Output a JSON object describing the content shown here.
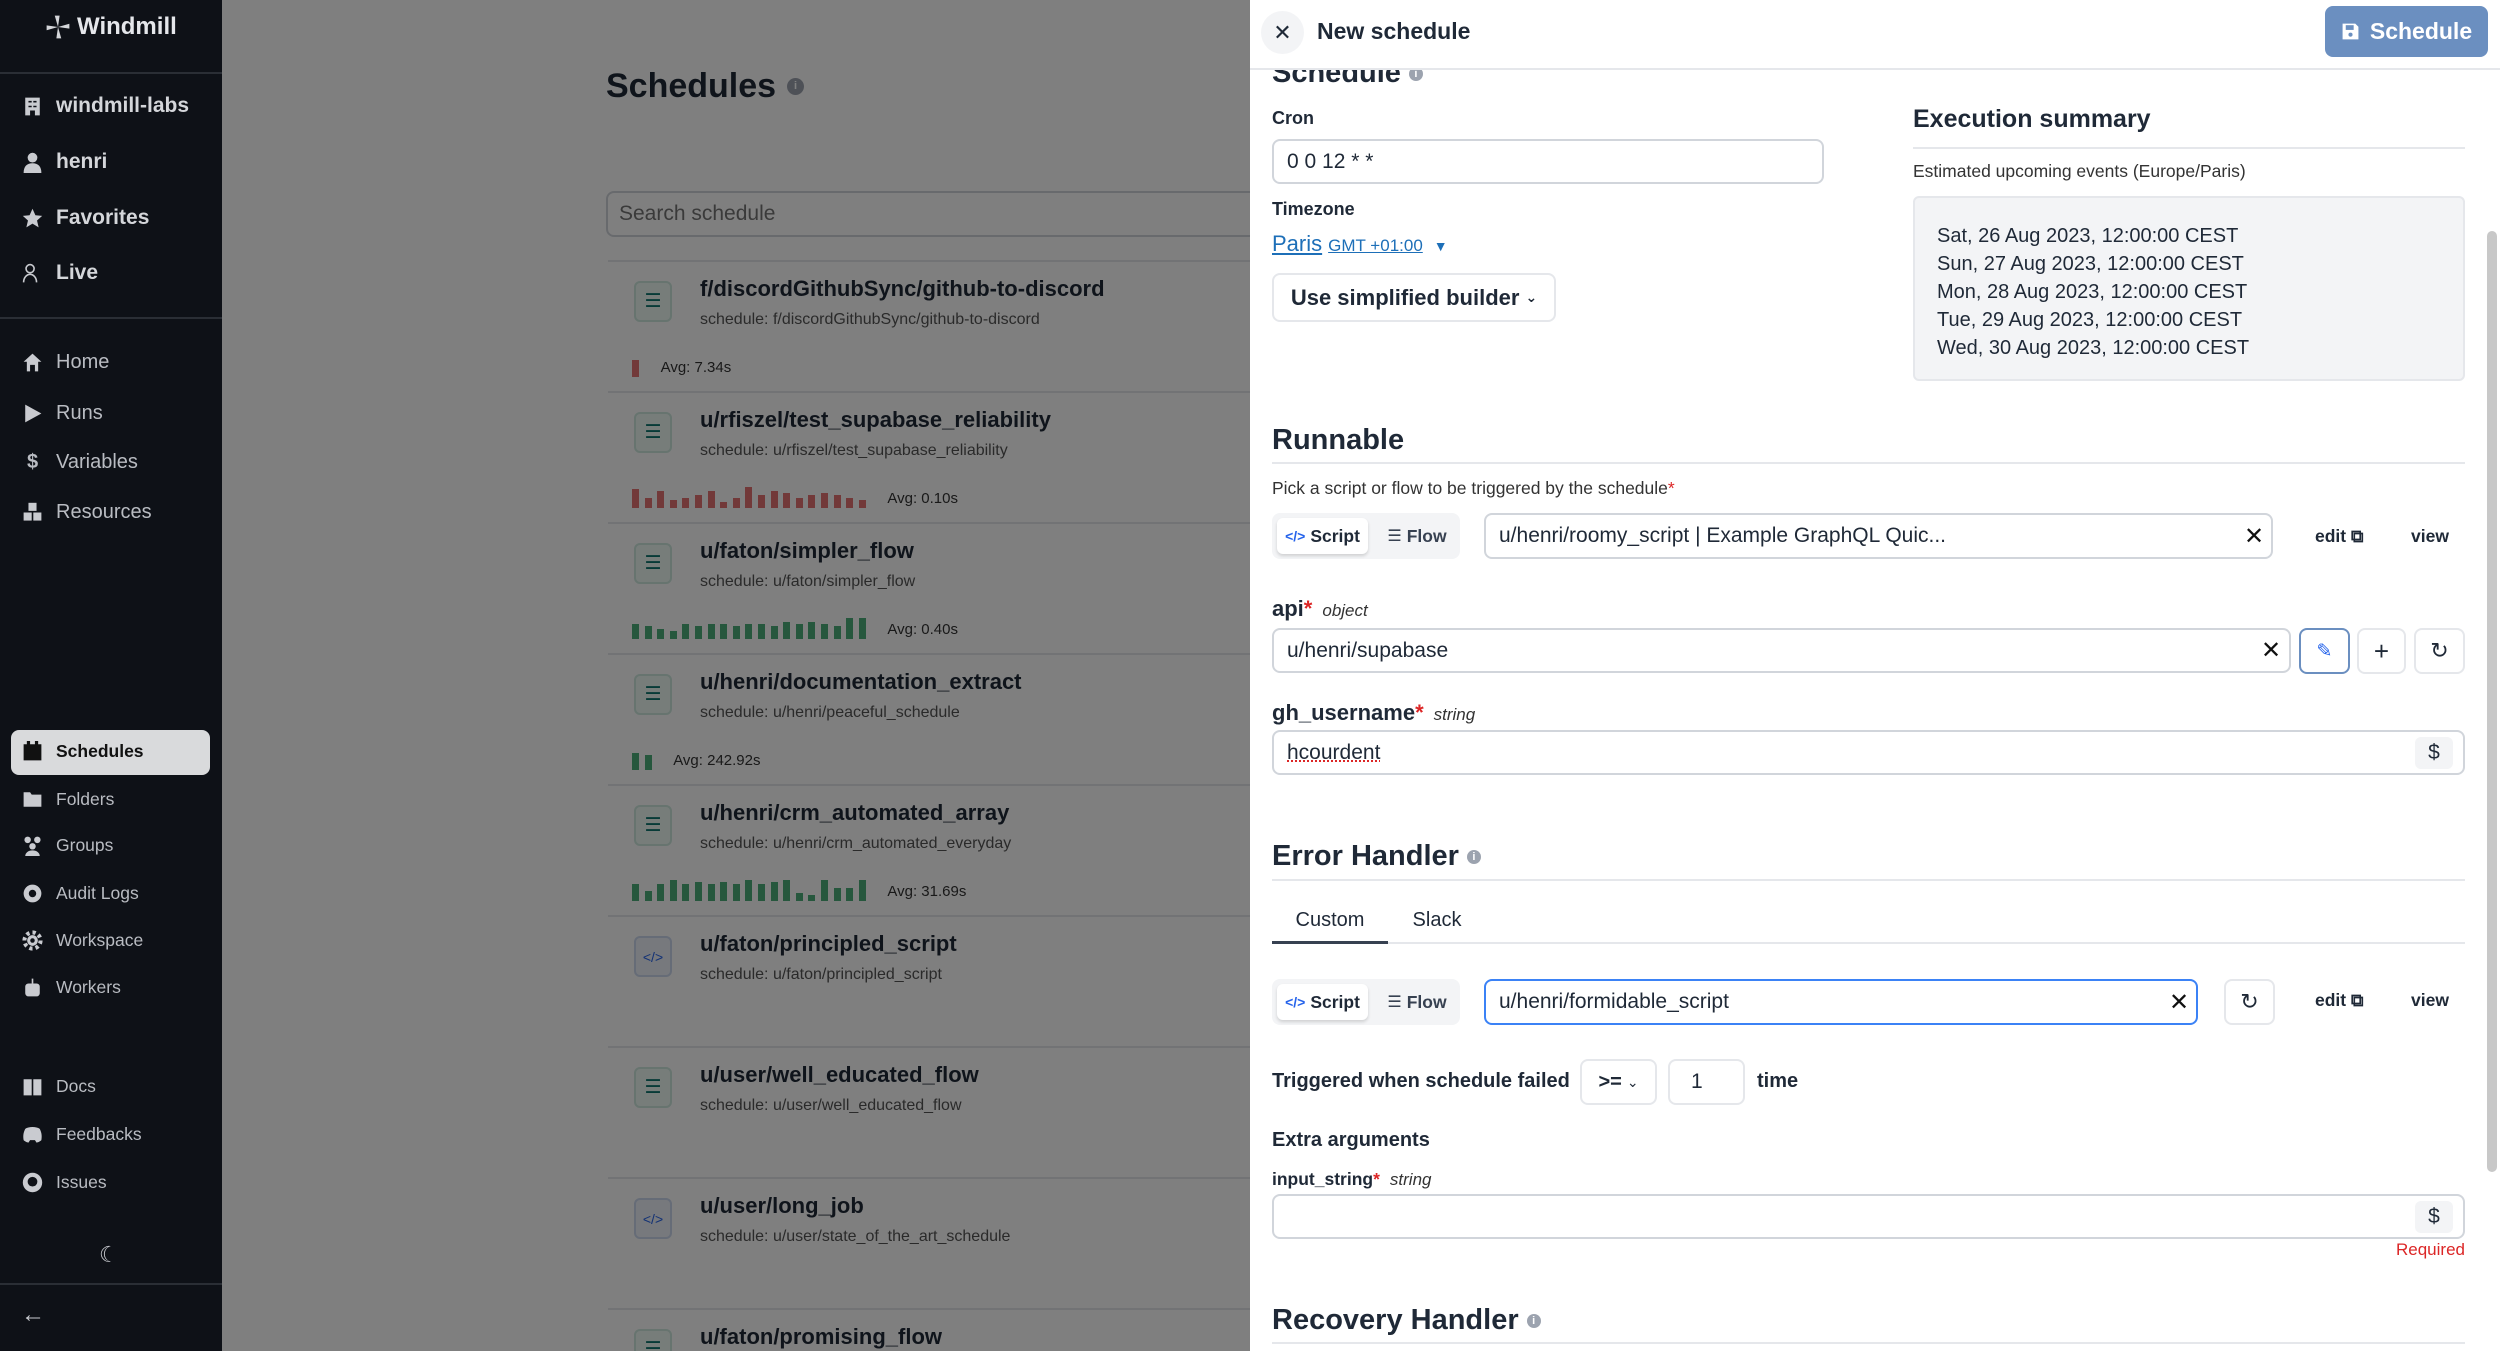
{
  "sidebar": {
    "logo": "Windmill",
    "top_items": [
      {
        "label": "windmill-labs",
        "icon": "building-icon"
      },
      {
        "label": "henri",
        "icon": "user-icon"
      },
      {
        "label": "Favorites",
        "icon": "star-icon"
      },
      {
        "label": "Live",
        "icon": "users-icon"
      }
    ],
    "main_items": [
      {
        "label": "Home",
        "icon": "home-icon"
      },
      {
        "label": "Runs",
        "icon": "play-icon"
      },
      {
        "label": "Variables",
        "icon": "dollar-icon"
      },
      {
        "label": "Resources",
        "icon": "boxes-icon"
      }
    ],
    "sub_items": [
      {
        "label": "Schedules",
        "icon": "calendar-icon",
        "active": true
      },
      {
        "label": "Folders",
        "icon": "folder-icon"
      },
      {
        "label": "Groups",
        "icon": "group-icon"
      },
      {
        "label": "Audit Logs",
        "icon": "eye-icon"
      },
      {
        "label": "Workspace",
        "icon": "gear-icon"
      },
      {
        "label": "Workers",
        "icon": "bot-icon"
      }
    ],
    "bottom_items": [
      {
        "label": "Docs",
        "icon": "book-icon"
      },
      {
        "label": "Feedbacks",
        "icon": "discord-icon"
      },
      {
        "label": "Issues",
        "icon": "github-icon"
      }
    ]
  },
  "main": {
    "title": "Schedules",
    "search_placeholder": "Search schedule",
    "colors": {
      "fail": "#e57373",
      "success": "#4caf7a"
    },
    "schedules": [
      {
        "name": "f/discordGithubSync/github-to-discord",
        "schedule": "schedule: f/discordGithubSync/github-to-discord",
        "kind": "flow",
        "status": "fail",
        "runs": [
          0.8
        ],
        "avg": "Avg: 7.34s"
      },
      {
        "name": "u/rfiszel/test_supabase_reliability",
        "schedule": "schedule: u/rfiszel/test_supabase_reliability",
        "kind": "flow",
        "status": "fail",
        "runs": [
          0.9,
          0.5,
          0.8,
          0.4,
          0.5,
          0.6,
          0.8,
          0.3,
          0.5,
          1,
          0.6,
          0.8,
          0.7,
          0.5,
          0.6,
          0.7,
          0.6,
          0.5,
          0.4
        ],
        "avg": "Avg: 0.10s"
      },
      {
        "name": "u/faton/simpler_flow",
        "schedule": "schedule: u/faton/simpler_flow",
        "kind": "flow",
        "status": "success",
        "runs": [
          0.7,
          0.6,
          0.5,
          0.4,
          0.7,
          0.6,
          0.7,
          0.7,
          0.6,
          0.7,
          0.7,
          0.6,
          0.8,
          0.7,
          0.8,
          0.7,
          0.6,
          1,
          1
        ],
        "avg": "Avg: 0.40s"
      },
      {
        "name": "u/henri/documentation_extract",
        "schedule": "schedule: u/henri/peaceful_schedule",
        "kind": "flow",
        "status": "success",
        "runs": [
          0.8,
          0.7
        ],
        "avg": "Avg: 242.92s"
      },
      {
        "name": "u/henri/crm_automated_array",
        "schedule": "schedule: u/henri/crm_automated_everyday",
        "kind": "flow",
        "status": "success",
        "runs": [
          0.8,
          0.5,
          0.8,
          1,
          0.8,
          0.9,
          0.8,
          0.9,
          0.8,
          1,
          0.8,
          0.9,
          1,
          0.4,
          0.3,
          1,
          0.6,
          0.6,
          1
        ],
        "avg": "Avg: 31.69s"
      },
      {
        "name": "u/faton/principled_script",
        "schedule": "schedule: u/faton/principled_script",
        "kind": "script"
      },
      {
        "name": "u/user/well_educated_flow",
        "schedule": "schedule: u/user/well_educated_flow",
        "kind": "flow"
      },
      {
        "name": "u/user/long_job",
        "schedule": "schedule: u/user/state_of_the_art_schedule",
        "kind": "script"
      },
      {
        "name": "u/faton/promising_flow",
        "schedule": "",
        "kind": "flow"
      }
    ]
  },
  "drawer": {
    "title": "New schedule",
    "save_label": "Schedule",
    "schedule_heading": "Schedule",
    "cron_label": "Cron",
    "cron_value": "0 0 12 * *",
    "timezone_label": "Timezone",
    "timezone_city": "Paris",
    "timezone_offset": "GMT +01:00",
    "builder_label": "Use simplified builder",
    "exec_title": "Execution summary",
    "exec_subtitle": "Estimated upcoming events (Europe/Paris)",
    "events": [
      "Sat, 26 Aug 2023, 12:00:00 CEST",
      "Sun, 27 Aug 2023, 12:00:00 CEST",
      "Mon, 28 Aug 2023, 12:00:00 CEST",
      "Tue, 29 Aug 2023, 12:00:00 CEST",
      "Wed, 30 Aug 2023, 12:00:00 CEST"
    ],
    "runnable": {
      "heading": "Runnable",
      "hint": "Pick a script or flow to be triggered by the schedule",
      "script_label": "Script",
      "flow_label": "Flow",
      "path_value": "u/henri/roomy_script | Example GraphQL Quic...",
      "edit_label": "edit",
      "view_label": "view"
    },
    "args": [
      {
        "name": "api",
        "type": "object",
        "value": "u/henri/supabase"
      },
      {
        "name": "gh_username",
        "type": "string",
        "value": "hcourdent"
      }
    ],
    "error_handler": {
      "heading": "Error Handler",
      "tabs": [
        "Custom",
        "Slack"
      ],
      "active_tab": "Custom",
      "script_label": "Script",
      "flow_label": "Flow",
      "path_value": "u/henri/formidable_script",
      "edit_label": "edit",
      "view_label": "view",
      "trigger_label": "Triggered when schedule failed",
      "operator": ">=",
      "count": "1",
      "unit": "time",
      "extra_label": "Extra arguments",
      "extra_arg_name": "input_string",
      "extra_arg_type": "string",
      "extra_arg_value": "",
      "required_text": "Required"
    },
    "recovery_heading": "Recovery Handler"
  }
}
